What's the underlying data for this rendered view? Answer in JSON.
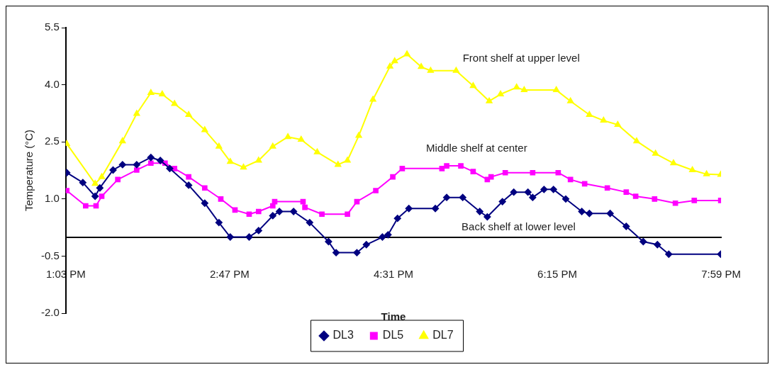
{
  "chart_data": {
    "type": "line",
    "xlabel": "Time",
    "ylabel": "Temperature (°C)",
    "xlim": [
      13.05,
      19.9833
    ],
    "xticks": [
      {
        "value": 13.05,
        "label": "1:03 PM"
      },
      {
        "value": 14.7833,
        "label": "2:47 PM"
      },
      {
        "value": 16.5167,
        "label": "4:31 PM"
      },
      {
        "value": 18.25,
        "label": "6:15 PM"
      },
      {
        "value": 19.9833,
        "label": "7:59 PM"
      }
    ],
    "ylim": [
      -2.0,
      5.5
    ],
    "yticks": [
      {
        "value": -2,
        "label": "-2.0"
      },
      {
        "value": -0.5,
        "label": "-0.5"
      },
      {
        "value": 1,
        "label": "1.0"
      },
      {
        "value": 2.5,
        "label": "2.5"
      },
      {
        "value": 4,
        "label": "4.0"
      },
      {
        "value": 5.5,
        "label": "5.5"
      }
    ],
    "grid": false,
    "legend": "bottom",
    "line_style": "solid",
    "series": [
      {
        "name": "DL3",
        "color": "#000080",
        "marker": "diamond",
        "x": [
          13.06,
          13.23,
          13.36,
          13.41,
          13.55,
          13.65,
          13.8,
          13.95,
          14.05,
          14.15,
          14.35,
          14.52,
          14.67,
          14.79,
          14.99,
          15.09,
          15.24,
          15.31,
          15.46,
          15.63,
          15.83,
          15.91,
          16.13,
          16.23,
          16.4,
          16.46,
          16.56,
          16.68,
          16.96,
          17.08,
          17.25,
          17.43,
          17.51,
          17.67,
          17.79,
          17.94,
          17.99,
          18.11,
          18.21,
          18.34,
          18.51,
          18.59,
          18.81,
          18.98,
          19.16,
          19.31,
          19.43,
          19.98
        ],
        "values": [
          1.69,
          1.43,
          1.07,
          1.29,
          1.76,
          1.9,
          1.9,
          2.09,
          2.01,
          1.8,
          1.36,
          0.89,
          0.38,
          0,
          0,
          0.17,
          0.56,
          0.67,
          0.67,
          0.38,
          -0.12,
          -0.41,
          -0.41,
          -0.2,
          0,
          0.06,
          0.49,
          0.75,
          0.75,
          1.04,
          1.04,
          0.67,
          0.53,
          0.93,
          1.18,
          1.18,
          1.04,
          1.25,
          1.25,
          1.0,
          0.67,
          0.62,
          0.62,
          0.28,
          -0.12,
          -0.2,
          -0.45,
          -0.45
        ]
      },
      {
        "name": "DL5",
        "color": "#ff00ff",
        "marker": "square",
        "x": [
          13.06,
          13.26,
          13.37,
          13.43,
          13.6,
          13.8,
          13.95,
          14.1,
          14.2,
          14.35,
          14.52,
          14.69,
          14.84,
          14.99,
          15.09,
          15.24,
          15.26,
          15.56,
          15.58,
          15.76,
          16.03,
          16.13,
          16.33,
          16.51,
          16.61,
          17.03,
          17.08,
          17.23,
          17.36,
          17.51,
          17.55,
          17.7,
          17.99,
          18.26,
          18.39,
          18.54,
          18.78,
          18.98,
          19.08,
          19.28,
          19.5,
          19.7,
          19.98
        ],
        "values": [
          1.22,
          0.82,
          0.82,
          1.07,
          1.51,
          1.76,
          1.94,
          1.94,
          1.8,
          1.58,
          1.29,
          1.0,
          0.71,
          0.6,
          0.67,
          0.82,
          0.93,
          0.93,
          0.78,
          0.6,
          0.6,
          0.93,
          1.22,
          1.58,
          1.8,
          1.8,
          1.87,
          1.87,
          1.72,
          1.51,
          1.58,
          1.69,
          1.69,
          1.69,
          1.51,
          1.4,
          1.29,
          1.18,
          1.07,
          1.0,
          0.89,
          0.96,
          0.96
        ]
      },
      {
        "name": "DL7",
        "color": "#ffff00",
        "marker": "triangle",
        "x": [
          13.06,
          13.36,
          13.43,
          13.65,
          13.8,
          13.95,
          14.07,
          14.2,
          14.35,
          14.52,
          14.67,
          14.79,
          14.93,
          15.09,
          15.24,
          15.4,
          15.54,
          15.71,
          15.93,
          16.03,
          16.15,
          16.3,
          16.48,
          16.53,
          16.66,
          16.81,
          16.91,
          17.18,
          17.36,
          17.53,
          17.65,
          17.82,
          17.9,
          18.24,
          18.39,
          18.59,
          18.74,
          18.89,
          19.09,
          19.29,
          19.48,
          19.68,
          19.83,
          19.98
        ],
        "values": [
          2.45,
          1.4,
          1.58,
          2.52,
          3.24,
          3.79,
          3.75,
          3.5,
          3.21,
          2.81,
          2.38,
          1.98,
          1.83,
          2.01,
          2.38,
          2.63,
          2.56,
          2.23,
          1.9,
          2.01,
          2.66,
          3.61,
          4.48,
          4.62,
          4.8,
          4.47,
          4.37,
          4.37,
          3.97,
          3.57,
          3.75,
          3.93,
          3.86,
          3.86,
          3.57,
          3.21,
          3.06,
          2.95,
          2.52,
          2.19,
          1.94,
          1.76,
          1.65,
          1.64
        ]
      }
    ],
    "annotations": [
      "Front shelf at upper level",
      "Middle shelf at center",
      "Back shelf at lower level"
    ]
  }
}
